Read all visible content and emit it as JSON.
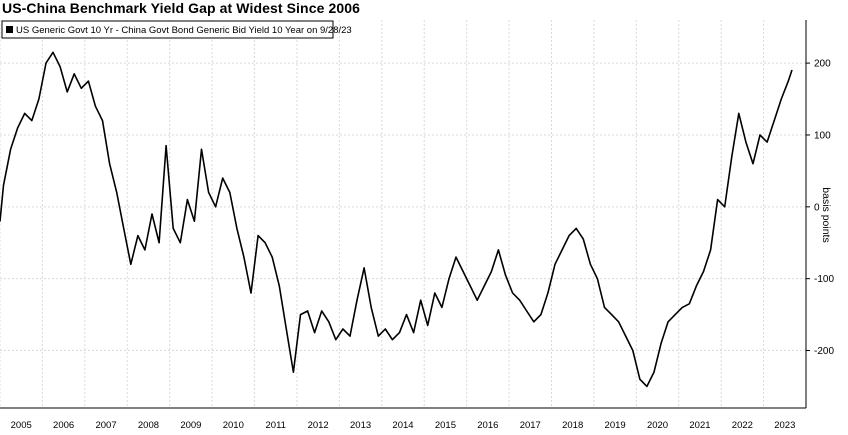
{
  "title": "US-China Benchmark Yield Gap at Widest Since 2006",
  "chart_data": {
    "type": "line",
    "title": "US-China Benchmark Yield Gap at Widest Since 2006",
    "ylabel": "basis points",
    "xlabel": "",
    "ylim": [
      -280,
      260
    ],
    "yticks": [
      200,
      100,
      0,
      -100,
      -200
    ],
    "x_tick_labels": [
      "2005",
      "2006",
      "2007",
      "2008",
      "2009",
      "2010",
      "2011",
      "2012",
      "2013",
      "2014",
      "2015",
      "2016",
      "2017",
      "2018",
      "2019",
      "2020",
      "2021",
      "2022",
      "2023"
    ],
    "grid": true,
    "legend": "top-left",
    "colors": {
      "line": "#000000",
      "grid": "#d9d9d9",
      "background": "#ffffff"
    },
    "series": [
      {
        "name": "US Generic Govt 10 Yr - China Govt Bond Generic Bid Yield 10 Year on 9/28/23",
        "points": [
          [
            "2005-01",
            -20
          ],
          [
            "2005-02",
            30
          ],
          [
            "2005-04",
            80
          ],
          [
            "2005-06",
            110
          ],
          [
            "2005-08",
            130
          ],
          [
            "2005-10",
            120
          ],
          [
            "2005-12",
            150
          ],
          [
            "2006-02",
            200
          ],
          [
            "2006-04",
            215
          ],
          [
            "2006-06",
            195
          ],
          [
            "2006-08",
            160
          ],
          [
            "2006-10",
            185
          ],
          [
            "2006-12",
            165
          ],
          [
            "2007-02",
            175
          ],
          [
            "2007-04",
            140
          ],
          [
            "2007-06",
            120
          ],
          [
            "2007-08",
            60
          ],
          [
            "2007-10",
            20
          ],
          [
            "2007-12",
            -30
          ],
          [
            "2008-02",
            -80
          ],
          [
            "2008-04",
            -40
          ],
          [
            "2008-06",
            -60
          ],
          [
            "2008-08",
            -10
          ],
          [
            "2008-10",
            -50
          ],
          [
            "2008-12",
            85
          ],
          [
            "2009-02",
            -30
          ],
          [
            "2009-04",
            -50
          ],
          [
            "2009-06",
            10
          ],
          [
            "2009-08",
            -20
          ],
          [
            "2009-10",
            80
          ],
          [
            "2009-12",
            20
          ],
          [
            "2010-02",
            0
          ],
          [
            "2010-04",
            40
          ],
          [
            "2010-06",
            20
          ],
          [
            "2010-08",
            -30
          ],
          [
            "2010-10",
            -70
          ],
          [
            "2010-12",
            -120
          ],
          [
            "2011-02",
            -40
          ],
          [
            "2011-04",
            -50
          ],
          [
            "2011-06",
            -70
          ],
          [
            "2011-08",
            -110
          ],
          [
            "2011-10",
            -170
          ],
          [
            "2011-12",
            -230
          ],
          [
            "2012-02",
            -150
          ],
          [
            "2012-04",
            -145
          ],
          [
            "2012-06",
            -175
          ],
          [
            "2012-08",
            -145
          ],
          [
            "2012-10",
            -160
          ],
          [
            "2012-12",
            -185
          ],
          [
            "2013-02",
            -170
          ],
          [
            "2013-04",
            -180
          ],
          [
            "2013-06",
            -130
          ],
          [
            "2013-08",
            -85
          ],
          [
            "2013-10",
            -140
          ],
          [
            "2013-12",
            -180
          ],
          [
            "2014-02",
            -170
          ],
          [
            "2014-04",
            -185
          ],
          [
            "2014-06",
            -175
          ],
          [
            "2014-08",
            -150
          ],
          [
            "2014-10",
            -175
          ],
          [
            "2014-12",
            -130
          ],
          [
            "2015-02",
            -165
          ],
          [
            "2015-04",
            -120
          ],
          [
            "2015-06",
            -140
          ],
          [
            "2015-08",
            -100
          ],
          [
            "2015-10",
            -70
          ],
          [
            "2015-12",
            -90
          ],
          [
            "2016-02",
            -110
          ],
          [
            "2016-04",
            -130
          ],
          [
            "2016-06",
            -110
          ],
          [
            "2016-08",
            -90
          ],
          [
            "2016-10",
            -60
          ],
          [
            "2016-12",
            -95
          ],
          [
            "2017-02",
            -120
          ],
          [
            "2017-04",
            -130
          ],
          [
            "2017-06",
            -145
          ],
          [
            "2017-08",
            -160
          ],
          [
            "2017-10",
            -150
          ],
          [
            "2017-12",
            -120
          ],
          [
            "2018-02",
            -80
          ],
          [
            "2018-04",
            -60
          ],
          [
            "2018-06",
            -40
          ],
          [
            "2018-08",
            -30
          ],
          [
            "2018-10",
            -45
          ],
          [
            "2018-12",
            -80
          ],
          [
            "2019-02",
            -100
          ],
          [
            "2019-04",
            -140
          ],
          [
            "2019-06",
            -150
          ],
          [
            "2019-08",
            -160
          ],
          [
            "2019-10",
            -180
          ],
          [
            "2019-12",
            -200
          ],
          [
            "2020-02",
            -240
          ],
          [
            "2020-04",
            -250
          ],
          [
            "2020-06",
            -230
          ],
          [
            "2020-08",
            -190
          ],
          [
            "2020-10",
            -160
          ],
          [
            "2020-12",
            -150
          ],
          [
            "2021-02",
            -140
          ],
          [
            "2021-04",
            -135
          ],
          [
            "2021-06",
            -110
          ],
          [
            "2021-08",
            -90
          ],
          [
            "2021-10",
            -60
          ],
          [
            "2021-12",
            10
          ],
          [
            "2022-02",
            0
          ],
          [
            "2022-04",
            70
          ],
          [
            "2022-06",
            130
          ],
          [
            "2022-08",
            90
          ],
          [
            "2022-10",
            60
          ],
          [
            "2022-12",
            100
          ],
          [
            "2023-02",
            90
          ],
          [
            "2023-04",
            120
          ],
          [
            "2023-06",
            150
          ],
          [
            "2023-08",
            175
          ],
          [
            "2023-09",
            190
          ]
        ]
      }
    ]
  }
}
